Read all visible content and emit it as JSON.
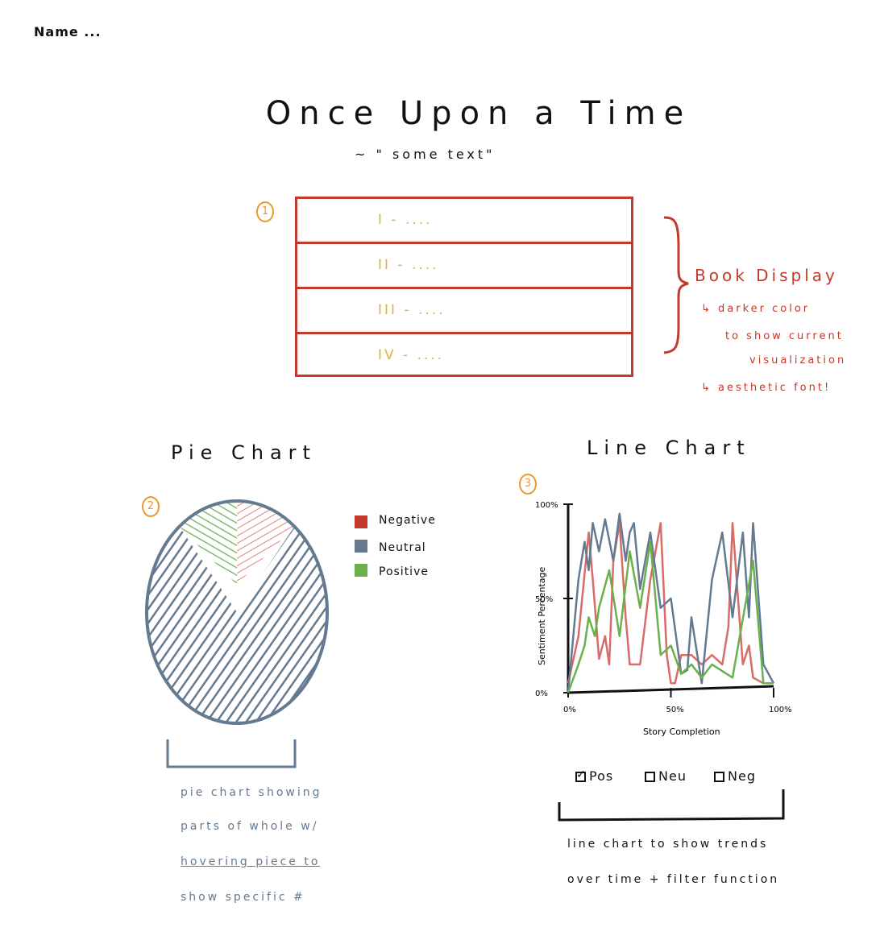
{
  "header": {
    "name": "Name ...",
    "title": "Once Upon a Time",
    "subtitle": "~ \" some  text\""
  },
  "book_display": {
    "badge": "1",
    "items": [
      "I - ....",
      "II - ....",
      "III - ....",
      "IV - ...."
    ],
    "label": "Book Display",
    "notes": [
      "↳ darker color",
      "to show current",
      "visualization",
      "↳ aesthetic font!"
    ],
    "colors": {
      "border": "#c33a2c",
      "items": "#e0b433"
    }
  },
  "pie_section": {
    "title": "Pie Chart",
    "badge": "2",
    "legend": [
      {
        "label": "Negative",
        "color": "#c33a2c"
      },
      {
        "label": "Neutral",
        "color": "#647a90"
      },
      {
        "label": "Positive",
        "color": "#6ab04c"
      }
    ],
    "notes": [
      "pie chart showing",
      "parts of whole w/",
      "hovering piece to",
      "show specific #"
    ]
  },
  "line_section": {
    "title": "Line Chart",
    "badge": "3",
    "filters": [
      {
        "label": "Pos",
        "checked": true
      },
      {
        "label": "Neu",
        "checked": false
      },
      {
        "label": "Neg",
        "checked": false
      }
    ],
    "notes": [
      "line  chart  to show trends",
      "over time  +  filter function"
    ]
  },
  "chart_data": [
    {
      "type": "pie",
      "categories": [
        "Negative",
        "Neutral",
        "Positive"
      ],
      "values": [
        11,
        78,
        11
      ],
      "colors": [
        "#c33a2c",
        "#647a90",
        "#6ab04c"
      ],
      "title": "Pie Chart"
    },
    {
      "type": "line",
      "title": "Line Chart",
      "xlabel": "Story Completion",
      "ylabel": "Sentiment Percentage",
      "x_ticks": [
        "0%",
        "50%",
        "100%"
      ],
      "y_ticks": [
        "0%",
        "50%",
        "100%"
      ],
      "xlim": [
        0,
        100
      ],
      "ylim": [
        0,
        100
      ],
      "series": [
        {
          "name": "Negative",
          "color": "#d96c68",
          "x": [
            0,
            5,
            10,
            12,
            15,
            18,
            20,
            22,
            25,
            28,
            30,
            35,
            40,
            45,
            48,
            50,
            52,
            55,
            60,
            65,
            70,
            75,
            78,
            80,
            85,
            88,
            90,
            95,
            100
          ],
          "y": [
            5,
            30,
            85,
            60,
            18,
            30,
            15,
            70,
            90,
            40,
            15,
            15,
            60,
            90,
            20,
            5,
            5,
            20,
            20,
            15,
            20,
            15,
            35,
            90,
            15,
            25,
            8,
            5,
            5
          ]
        },
        {
          "name": "Neutral",
          "color": "#647a90",
          "x": [
            0,
            5,
            8,
            10,
            12,
            15,
            18,
            22,
            25,
            28,
            30,
            32,
            35,
            40,
            45,
            50,
            55,
            58,
            60,
            65,
            70,
            75,
            80,
            85,
            88,
            90,
            95,
            100
          ],
          "y": [
            0,
            60,
            80,
            65,
            90,
            75,
            92,
            70,
            95,
            70,
            85,
            90,
            55,
            85,
            45,
            50,
            10,
            12,
            40,
            5,
            60,
            85,
            40,
            85,
            40,
            90,
            15,
            5
          ]
        },
        {
          "name": "Positive",
          "color": "#6ab04c",
          "x": [
            0,
            5,
            8,
            10,
            13,
            15,
            20,
            25,
            30,
            35,
            40,
            45,
            50,
            55,
            60,
            65,
            70,
            80,
            90,
            95,
            100
          ],
          "y": [
            0,
            15,
            25,
            40,
            30,
            45,
            65,
            30,
            75,
            45,
            80,
            20,
            25,
            10,
            15,
            8,
            15,
            8,
            70,
            5,
            5
          ]
        }
      ]
    }
  ]
}
